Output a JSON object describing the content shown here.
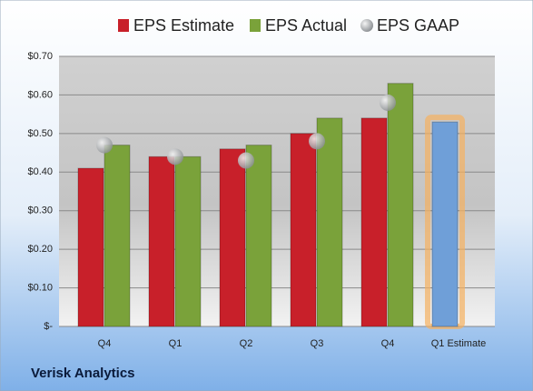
{
  "chart_data": {
    "type": "bar",
    "footer": "Verisk Analytics",
    "categories": [
      "Q4",
      "Q1",
      "Q2",
      "Q3",
      "Q4",
      "Q1 Estimate"
    ],
    "series": [
      {
        "name": "EPS Estimate",
        "color": "#c8202a",
        "values": [
          0.41,
          0.44,
          0.46,
          0.5,
          0.54,
          null
        ]
      },
      {
        "name": "EPS Actual",
        "color": "#7aa23a",
        "values": [
          0.47,
          0.44,
          0.47,
          0.54,
          0.63,
          null
        ]
      },
      {
        "name": "EPS GAAP",
        "color": "#b0b4b8",
        "mark": "circle",
        "values": [
          0.47,
          0.44,
          0.43,
          0.48,
          0.58,
          null
        ]
      },
      {
        "color": "#6f9fd8",
        "values": [
          null,
          null,
          null,
          null,
          null,
          0.53
        ]
      }
    ],
    "ylim": [
      0,
      0.7
    ],
    "yticks": [
      {
        "value": 0,
        "label": "$-"
      },
      {
        "value": 0.1,
        "label": "$0.10"
      },
      {
        "value": 0.2,
        "label": "$0.20"
      },
      {
        "value": 0.3,
        "label": "$0.30"
      },
      {
        "value": 0.4,
        "label": "$0.40"
      },
      {
        "value": 0.5,
        "label": "$0.50"
      },
      {
        "value": 0.6,
        "label": "$0.60"
      },
      {
        "value": 0.7,
        "label": "$0.70"
      }
    ],
    "grid": true
  }
}
